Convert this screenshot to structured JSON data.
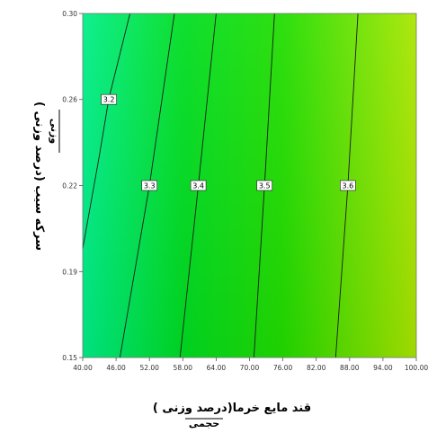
{
  "chart_data": {
    "type": "contour",
    "xlabel": "قند مایع خرما(درصد وزنی )",
    "xlabel_sub": "حجمی",
    "ylabel": "( درصد وزنی) سرکه سیب",
    "ylabel_sub": "وزنی",
    "xlim": [
      40,
      100
    ],
    "ylim": [
      0.15,
      0.3
    ],
    "x_ticks": [
      {
        "value": 40,
        "label": "40.00"
      },
      {
        "value": 46,
        "label": "46.00"
      },
      {
        "value": 52,
        "label": "52.00"
      },
      {
        "value": 58,
        "label": "58.00"
      },
      {
        "value": 64,
        "label": "64.00"
      },
      {
        "value": 70,
        "label": "70.00"
      },
      {
        "value": 76,
        "label": "76.00"
      },
      {
        "value": 82,
        "label": "82.00"
      },
      {
        "value": 88,
        "label": "88.00"
      },
      {
        "value": 94,
        "label": "94.00"
      },
      {
        "value": 100,
        "label": "100.00"
      }
    ],
    "y_ticks": [
      {
        "value": 0.15,
        "label": "0.15"
      },
      {
        "value": 0.1875,
        "label": "0.19"
      },
      {
        "value": 0.225,
        "label": "0.22"
      },
      {
        "value": 0.2625,
        "label": "0.26"
      },
      {
        "value": 0.3,
        "label": "0.30"
      }
    ],
    "contours": [
      {
        "level": 3.2,
        "label": "3.2",
        "points": [
          [
            40,
            0.1975
          ],
          [
            43,
            0.238
          ],
          [
            44.7,
            0.263
          ],
          [
            48.5,
            0.3
          ]
        ],
        "label_at": [
          44.7,
          0.2625
        ]
      },
      {
        "level": 3.3,
        "label": "3.3",
        "points": [
          [
            46.7,
            0.15
          ],
          [
            52,
            0.225
          ],
          [
            56.5,
            0.3
          ]
        ],
        "label_at": [
          52,
          0.225
        ]
      },
      {
        "level": 3.4,
        "label": "3.4",
        "points": [
          [
            57.5,
            0.15
          ],
          [
            60.8,
            0.225
          ],
          [
            64,
            0.3
          ]
        ],
        "label_at": [
          60.8,
          0.225
        ]
      },
      {
        "level": 3.5,
        "label": "3.5",
        "points": [
          [
            70.8,
            0.15
          ],
          [
            72.7,
            0.225
          ],
          [
            74.5,
            0.3
          ]
        ],
        "label_at": [
          72.7,
          0.225
        ]
      },
      {
        "level": 3.6,
        "label": "3.6",
        "points": [
          [
            85.5,
            0.15
          ],
          [
            87.7,
            0.225
          ],
          [
            89.5,
            0.3
          ]
        ],
        "label_at": [
          87.7,
          0.225
        ]
      }
    ],
    "colors": {
      "low": "#00ee88",
      "mid": "#00dd11",
      "high": "#a9e600",
      "line": "#1a1a1a",
      "label_bg": "#ffffff"
    }
  }
}
